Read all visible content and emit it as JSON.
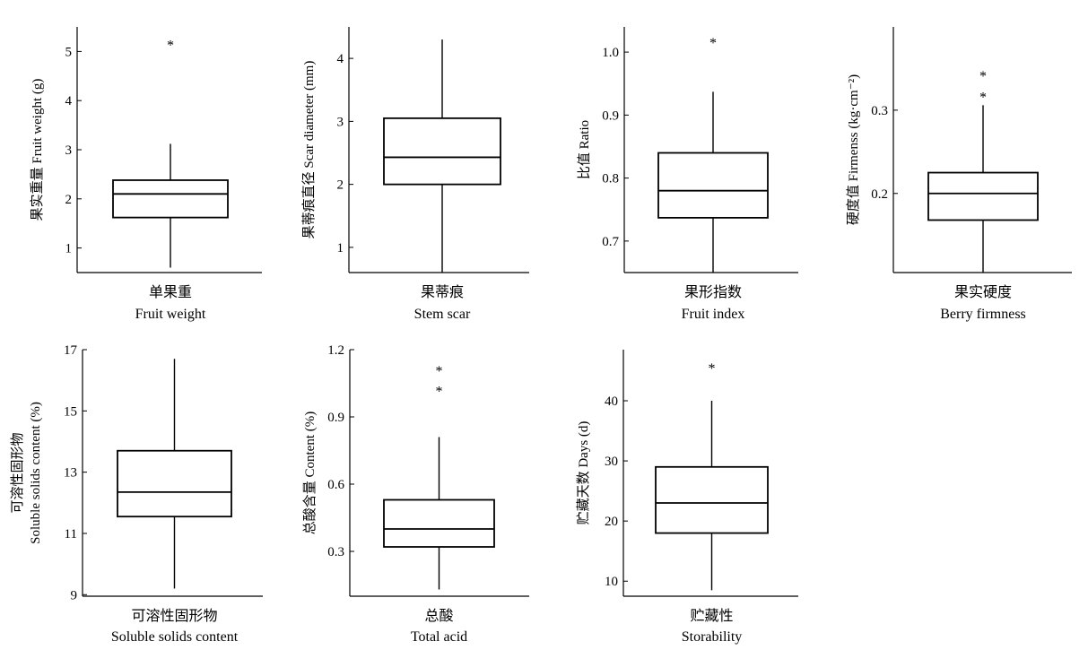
{
  "chart_data": [
    {
      "type": "box",
      "ylabel": "果实重量 Fruit weight (g)",
      "category_cn": "单果重",
      "category_en": "Fruit weight",
      "ylim": [
        0.5,
        5.5
      ],
      "yticks": [
        1,
        2,
        3,
        4,
        5
      ],
      "tick_labels": [
        "1",
        "2",
        "3",
        "4",
        "5"
      ],
      "whisker_low": 0.6,
      "q1": 1.62,
      "median": 2.1,
      "q3": 2.38,
      "whisker_high": 3.12,
      "outliers": [
        5.2
      ]
    },
    {
      "type": "box",
      "ylabel": "果蒂痕直径 Scar diameter (mm)",
      "category_cn": "果蒂痕",
      "category_en": "Stem scar",
      "ylim": [
        0.6,
        4.5
      ],
      "yticks": [
        1,
        2,
        3,
        4
      ],
      "tick_labels": [
        "1",
        "2",
        "3",
        "4"
      ],
      "whisker_low": 0.6,
      "q1": 2.0,
      "median": 2.43,
      "q3": 3.05,
      "whisker_high": 4.3,
      "outliers": []
    },
    {
      "type": "box",
      "ylabel": "比值 Ratio",
      "category_cn": "果形指数",
      "category_en": "Fruit index",
      "ylim": [
        0.65,
        1.04
      ],
      "yticks": [
        0.7,
        0.8,
        0.9,
        1.0
      ],
      "tick_labels": [
        "0.7",
        "0.8",
        "0.9",
        "1.0"
      ],
      "whisker_low": 0.65,
      "q1": 0.737,
      "median": 0.78,
      "q3": 0.84,
      "whisker_high": 0.937,
      "outliers": [
        1.02
      ]
    },
    {
      "type": "box",
      "ylabel": "硬度值 Firmenss (kg·cm⁻²)",
      "category_cn": "果实硬度",
      "category_en": "Berry firmness",
      "ylim": [
        0.105,
        0.4
      ],
      "yticks": [
        0.2,
        0.3
      ],
      "tick_labels": [
        "0.2",
        "0.3"
      ],
      "whisker_low": 0.105,
      "q1": 0.168,
      "median": 0.2,
      "q3": 0.225,
      "whisker_high": 0.306,
      "outliers": [
        0.345,
        0.32
      ]
    },
    {
      "type": "box",
      "ylabel": "可溶性固形物 Soluble solids content (%)",
      "ylabel_lines": [
        "可溶性固形物",
        "Soluble solids content (%)"
      ],
      "category_cn": "可溶性固形物",
      "category_en": "Soluble solids content",
      "ylim": [
        8.95,
        17
      ],
      "yticks": [
        9,
        11,
        13,
        15,
        17
      ],
      "tick_labels": [
        "9",
        "11",
        "13",
        "15",
        "17"
      ],
      "whisker_low": 9.2,
      "q1": 11.55,
      "median": 12.35,
      "q3": 13.7,
      "whisker_high": 16.7,
      "outliers": []
    },
    {
      "type": "box",
      "ylabel": "总酸含量 Content (%)",
      "category_cn": "总酸",
      "category_en": "Total acid",
      "ylim": [
        0.1,
        1.2
      ],
      "yticks": [
        0.3,
        0.6,
        0.9,
        1.2
      ],
      "tick_labels": [
        "0.3",
        "0.6",
        "0.9",
        "1.2"
      ],
      "whisker_low": 0.13,
      "q1": 0.32,
      "median": 0.4,
      "q3": 0.53,
      "whisker_high": 0.81,
      "outliers": [
        1.12,
        1.03
      ]
    },
    {
      "type": "box",
      "ylabel": "贮藏天数 Days (d)",
      "category_cn": "贮藏性",
      "category_en": "Storability",
      "ylim": [
        7.5,
        48.5
      ],
      "yticks": [
        10,
        20,
        30,
        40
      ],
      "tick_labels": [
        "10",
        "20",
        "30",
        "40"
      ],
      "whisker_low": 8.5,
      "q1": 18,
      "median": 23,
      "q3": 29,
      "whisker_high": 40,
      "outliers": [
        46
      ]
    }
  ]
}
